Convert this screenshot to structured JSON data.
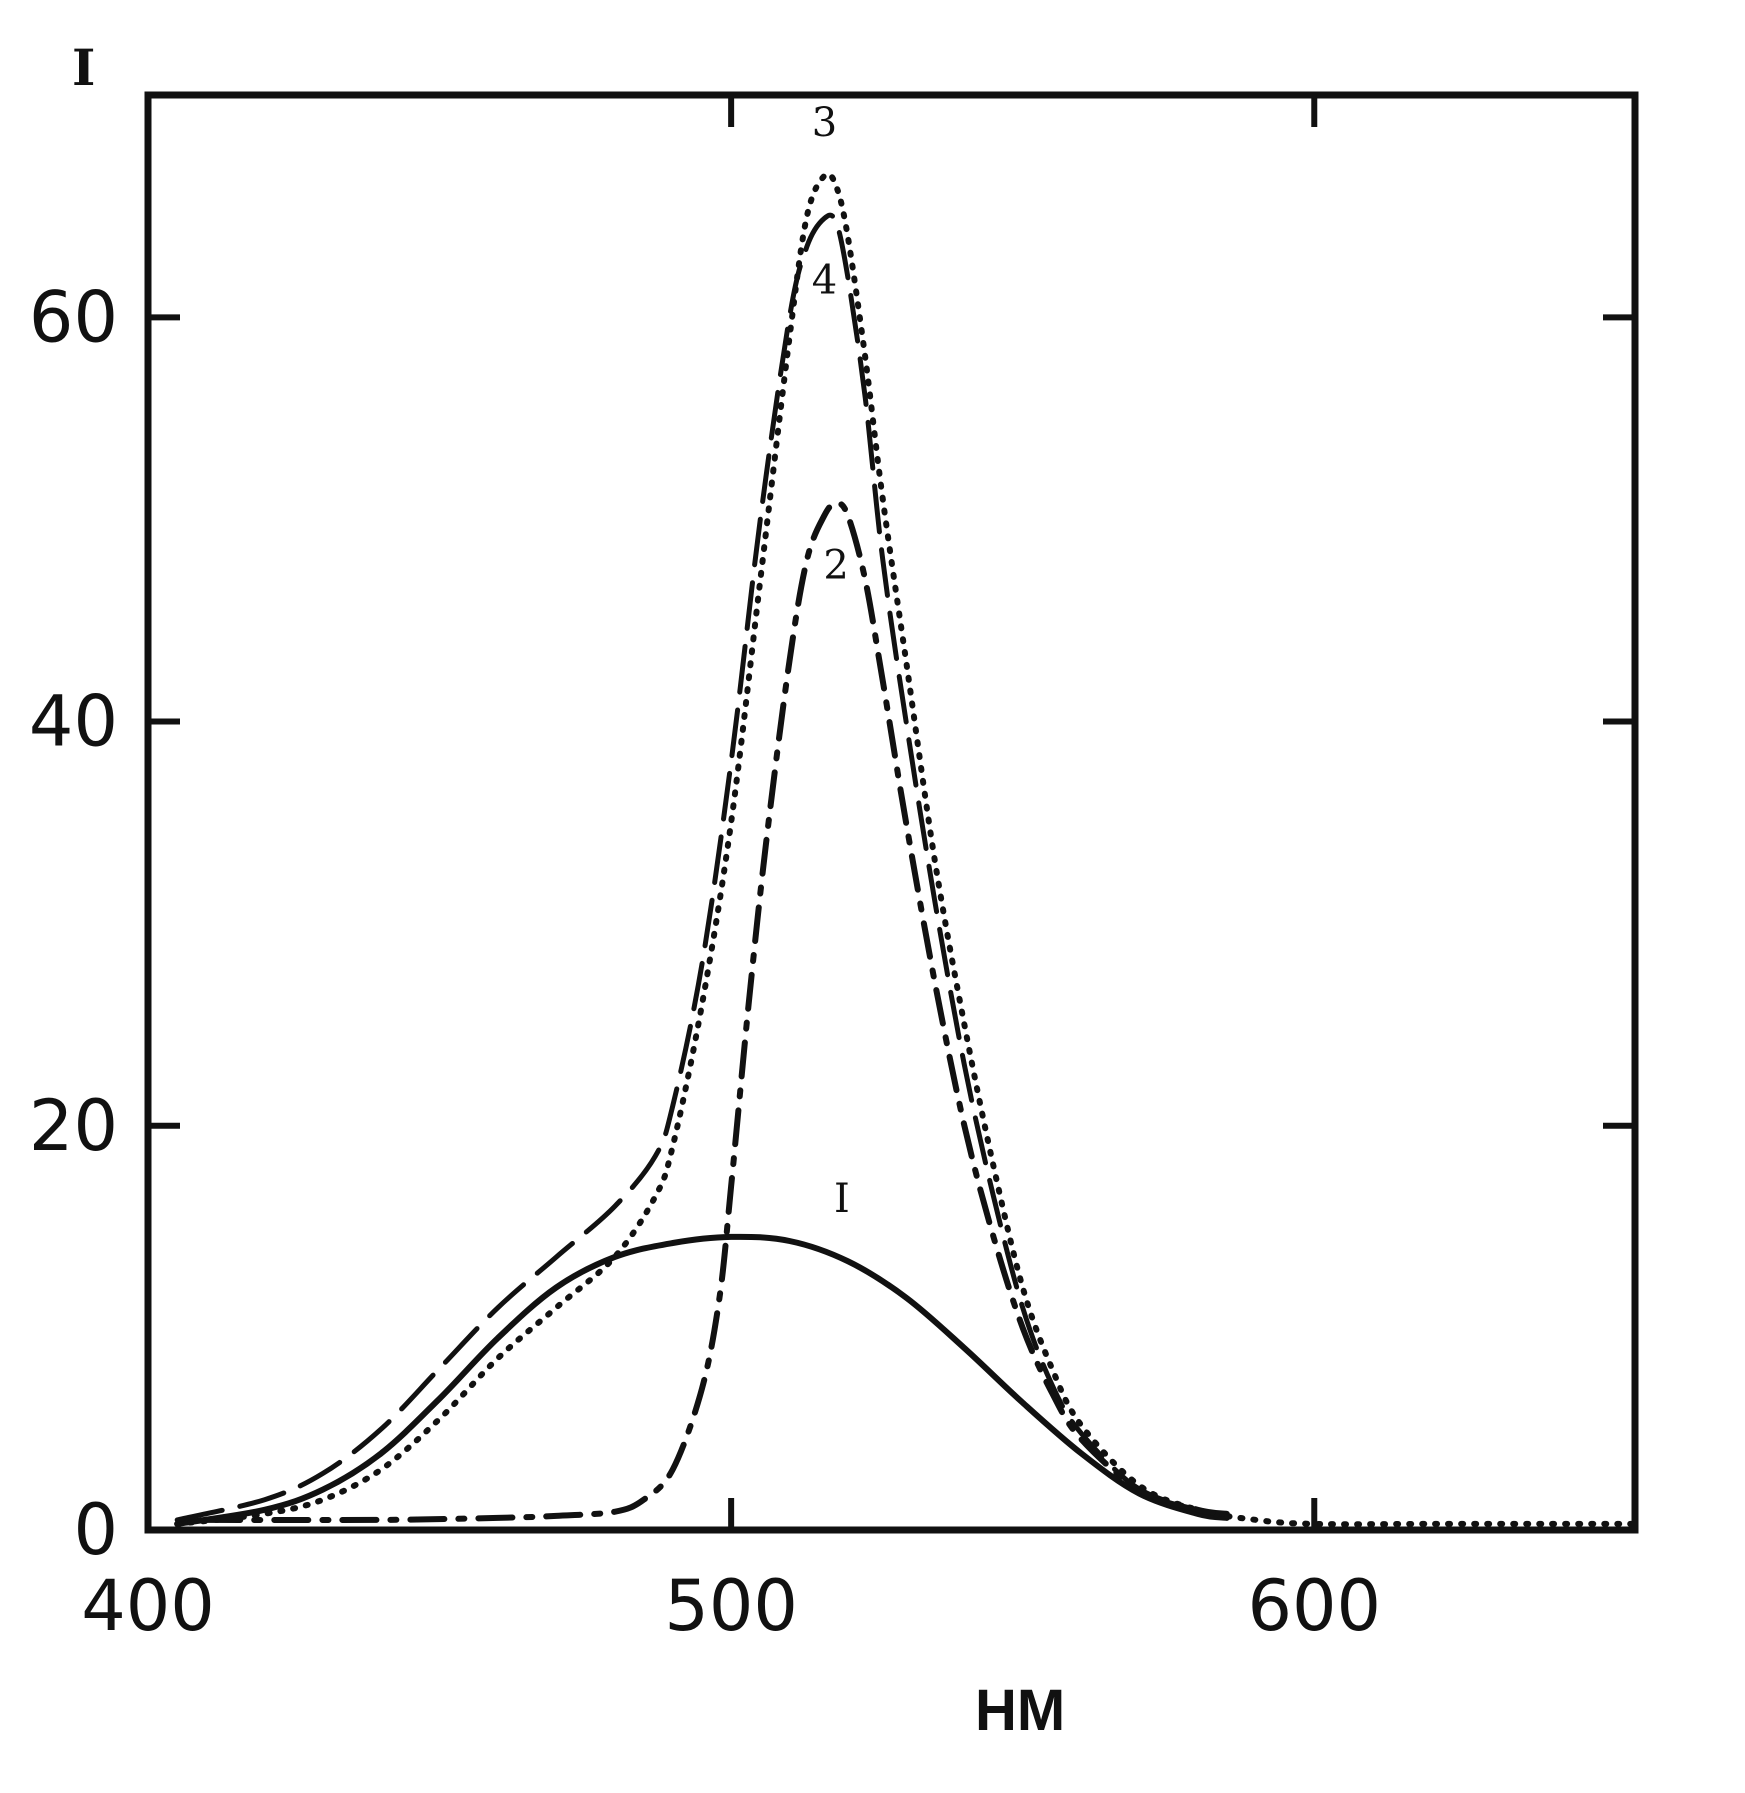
{
  "chart_data": {
    "type": "line",
    "xlabel": "HM",
    "ylabel": "I",
    "xlim": [
      400,
      655
    ],
    "ylim": [
      0,
      71
    ],
    "x_ticks": [
      400,
      500,
      600
    ],
    "y_ticks": [
      0,
      20,
      40,
      60
    ],
    "grid": false,
    "series": [
      {
        "name": "I",
        "style": "solid",
        "x": [
          405,
          420,
          430,
          440,
          450,
          460,
          470,
          480,
          490,
          500,
          510,
          520,
          530,
          540,
          550,
          560,
          570,
          580,
          585
        ],
        "y": [
          0.3,
          1.0,
          2.0,
          3.8,
          6.5,
          9.5,
          12.0,
          13.5,
          14.2,
          14.5,
          14.3,
          13.3,
          11.5,
          9.0,
          6.3,
          3.8,
          1.8,
          0.8,
          0.6
        ]
      },
      {
        "name": "2",
        "style": "dash-dot",
        "x": [
          410,
          440,
          460,
          470,
          480,
          485,
          490,
          495,
          498,
          500,
          503,
          506,
          510,
          513,
          516,
          518,
          520,
          523,
          526,
          530,
          535,
          540,
          545,
          550,
          555,
          560,
          570,
          580,
          585
        ],
        "y": [
          0.5,
          0.5,
          0.6,
          0.7,
          0.9,
          1.5,
          3.0,
          7.0,
          11.5,
          17.0,
          26.0,
          34.0,
          43.0,
          48.0,
          50.2,
          50.8,
          50.2,
          47.0,
          42.0,
          35.0,
          27.0,
          20.0,
          14.5,
          10.0,
          6.8,
          4.5,
          2.0,
          1.0,
          0.8
        ]
      },
      {
        "name": "3",
        "style": "dotted",
        "x": [
          405,
          420,
          430,
          440,
          450,
          460,
          470,
          480,
          487,
          490,
          495,
          500,
          505,
          510,
          513,
          516,
          518,
          520,
          523,
          526,
          530,
          535,
          540,
          545,
          550,
          555,
          560,
          570,
          580,
          590,
          600,
          620,
          640,
          655
        ],
        "y": [
          0.3,
          0.8,
          1.5,
          3.0,
          5.5,
          8.5,
          11.0,
          13.5,
          16.5,
          19.0,
          26.0,
          35.0,
          47.0,
          59.0,
          65.0,
          67.0,
          66.5,
          64.0,
          58.0,
          51.0,
          43.0,
          33.0,
          25.0,
          18.0,
          12.0,
          8.0,
          5.2,
          2.2,
          1.0,
          0.5,
          0.3,
          0.3,
          0.3,
          0.3
        ]
      },
      {
        "name": "4",
        "style": "long-dash",
        "x": [
          405,
          420,
          430,
          440,
          450,
          460,
          470,
          480,
          487,
          490,
          495,
          500,
          505,
          510,
          513,
          516,
          518,
          520,
          523,
          526,
          530,
          535,
          540,
          545,
          550,
          555,
          560,
          570,
          580,
          585
        ],
        "y": [
          0.5,
          1.5,
          2.8,
          5.0,
          8.0,
          11.0,
          13.5,
          16.0,
          18.5,
          21.0,
          28.0,
          38.0,
          50.0,
          60.0,
          63.5,
          64.9,
          64.7,
          62.0,
          56.0,
          48.0,
          40.0,
          31.0,
          23.0,
          16.5,
          11.0,
          7.2,
          4.8,
          2.0,
          1.0,
          0.8
        ]
      }
    ]
  }
}
